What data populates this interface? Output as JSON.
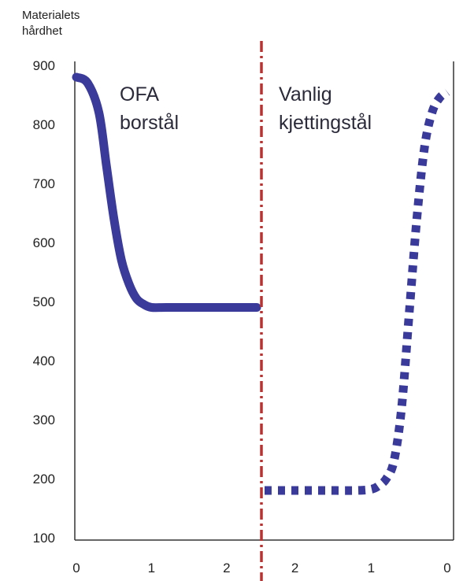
{
  "chart_data": {
    "type": "line",
    "ylabel_lines": [
      "Materialets",
      "hårdhet"
    ],
    "y_ticks": [
      900,
      800,
      700,
      600,
      500,
      400,
      300,
      200,
      100
    ],
    "ylim": [
      100,
      900
    ],
    "grid": false,
    "divider_color": "#b83232",
    "series_color": "#3a3a9a",
    "panels": [
      {
        "x_ticks": [
          0,
          1,
          2
        ],
        "xlim": [
          0,
          2.4
        ],
        "series": [
          {
            "name": "OFA borstål",
            "label_lines": [
              "OFA",
              "borstål"
            ],
            "style": "solid",
            "x": [
              0,
              0.15,
              0.3,
              0.4,
              0.5,
              0.6,
              0.7,
              0.8,
              0.9,
              1.0,
              1.2,
              1.6,
              2.0,
              2.4
            ],
            "values": [
              880,
              870,
              820,
              730,
              640,
              570,
              530,
              505,
              495,
              490,
              490,
              490,
              490,
              490
            ]
          }
        ]
      },
      {
        "x_ticks": [
          2,
          1,
          0
        ],
        "xlim": [
          2.4,
          0
        ],
        "series": [
          {
            "name": "Vanlig kjettingstål",
            "label_lines": [
              "Vanlig",
              "kjettingstål"
            ],
            "style": "dotted",
            "x": [
              2.4,
              2.0,
              1.6,
              1.2,
              1.0,
              0.9,
              0.8,
              0.7,
              0.6,
              0.5,
              0.4,
              0.3,
              0.2,
              0.1,
              0.0
            ],
            "values": [
              180,
              180,
              180,
              180,
              182,
              188,
              200,
              230,
              320,
              480,
              640,
              760,
              820,
              845,
              855
            ]
          }
        ]
      }
    ]
  }
}
